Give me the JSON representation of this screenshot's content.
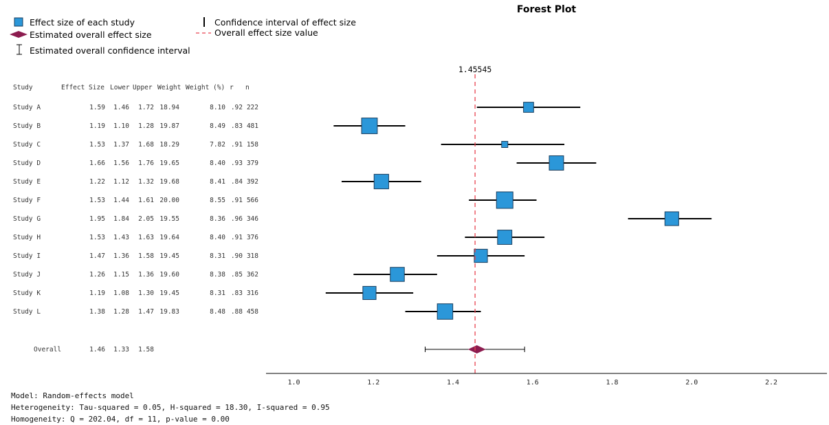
{
  "chart_data": {
    "type": "forest",
    "title": "Forest Plot",
    "legend": {
      "study": "Effect size of each study",
      "overall_effect": "Estimated overall effect size",
      "overall_ci": "Estimated overall confidence interval",
      "ci": "Confidence interval of effect size",
      "ref_line": "Overall effect size value"
    },
    "columns": [
      "Study",
      "Effect Size",
      "Lower",
      "Upper",
      "Weight",
      "Weight (%)",
      "r",
      "n"
    ],
    "studies": [
      {
        "name": "Study A",
        "effect": "1.59",
        "lower": "1.46",
        "upper": "1.72",
        "weight": "18.94",
        "weight_pct": "8.10",
        "r": ".92",
        "n": "222"
      },
      {
        "name": "Study B",
        "effect": "1.19",
        "lower": "1.10",
        "upper": "1.28",
        "weight": "19.87",
        "weight_pct": "8.49",
        "r": ".83",
        "n": "481"
      },
      {
        "name": "Study C",
        "effect": "1.53",
        "lower": "1.37",
        "upper": "1.68",
        "weight": "18.29",
        "weight_pct": "7.82",
        "r": ".91",
        "n": "158"
      },
      {
        "name": "Study D",
        "effect": "1.66",
        "lower": "1.56",
        "upper": "1.76",
        "weight": "19.65",
        "weight_pct": "8.40",
        "r": ".93",
        "n": "379"
      },
      {
        "name": "Study E",
        "effect": "1.22",
        "lower": "1.12",
        "upper": "1.32",
        "weight": "19.68",
        "weight_pct": "8.41",
        "r": ".84",
        "n": "392"
      },
      {
        "name": "Study F",
        "effect": "1.53",
        "lower": "1.44",
        "upper": "1.61",
        "weight": "20.00",
        "weight_pct": "8.55",
        "r": ".91",
        "n": "566"
      },
      {
        "name": "Study G",
        "effect": "1.95",
        "lower": "1.84",
        "upper": "2.05",
        "weight": "19.55",
        "weight_pct": "8.36",
        "r": ".96",
        "n": "346"
      },
      {
        "name": "Study H",
        "effect": "1.53",
        "lower": "1.43",
        "upper": "1.63",
        "weight": "19.64",
        "weight_pct": "8.40",
        "r": ".91",
        "n": "376"
      },
      {
        "name": "Study I",
        "effect": "1.47",
        "lower": "1.36",
        "upper": "1.58",
        "weight": "19.45",
        "weight_pct": "8.31",
        "r": ".90",
        "n": "318"
      },
      {
        "name": "Study J",
        "effect": "1.26",
        "lower": "1.15",
        "upper": "1.36",
        "weight": "19.60",
        "weight_pct": "8.38",
        "r": ".85",
        "n": "362"
      },
      {
        "name": "Study K",
        "effect": "1.19",
        "lower": "1.08",
        "upper": "1.30",
        "weight": "19.45",
        "weight_pct": "8.31",
        "r": ".83",
        "n": "316"
      },
      {
        "name": "Study L",
        "effect": "1.38",
        "lower": "1.28",
        "upper": "1.47",
        "weight": "19.83",
        "weight_pct": "8.48",
        "r": ".88",
        "n": "458"
      }
    ],
    "overall": {
      "name": "Overall",
      "effect": "1.46",
      "lower": "1.33",
      "upper": "1.58"
    },
    "ref_value": 1.45545,
    "ref_label": "1.45545",
    "xlim": [
      0.93,
      2.34
    ],
    "ticks": [
      "1.0",
      "1.2",
      "1.4",
      "1.6",
      "1.8",
      "2.0",
      "2.2"
    ],
    "colors": {
      "box_fill": "#2b97d9",
      "box_stroke": "#1a3d5c",
      "diamond": "#8c1c4f",
      "ref_line": "#e8424f",
      "ci_line": "#000000"
    }
  },
  "footer": {
    "model": "Model: Random-effects model",
    "heterogeneity": "Heterogeneity: Tau-squared = 0.05, H-squared = 18.30, I-squared = 0.95",
    "homogeneity": "Homogeneity: Q = 202.04, df = 11, p-value = 0.00"
  }
}
